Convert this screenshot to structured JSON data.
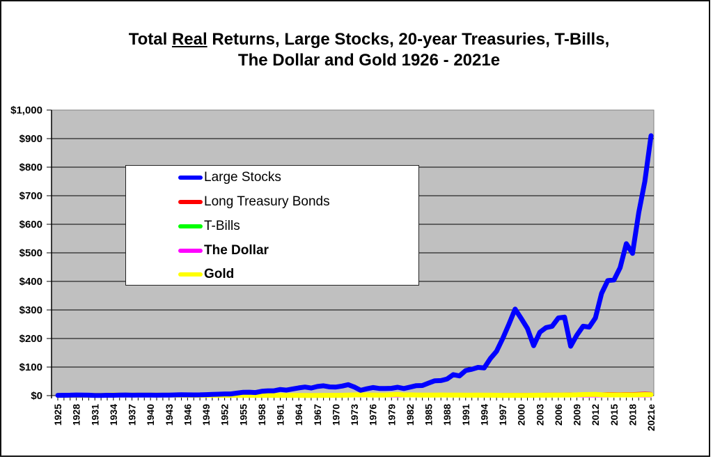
{
  "title": {
    "line1_prefix": "Total ",
    "line1_underlined": "Real",
    "line1_suffix": " Returns, Large Stocks, 20-year Treasuries, T-Bills,",
    "line2": "The Dollar and Gold 1926 - 2021e"
  },
  "legend": {
    "items": [
      {
        "label": "Large Stocks",
        "color": "#0000ff",
        "bold": false
      },
      {
        "label": "Long Treasury Bonds",
        "color": "#ff0000",
        "bold": false
      },
      {
        "label": "T-Bills",
        "color": "#00ff00",
        "bold": false
      },
      {
        "label": "The Dollar",
        "color": "#ff00ff",
        "bold": true
      },
      {
        "label": "Gold",
        "color": "#ffff00",
        "bold": true
      }
    ]
  },
  "colors": {
    "plot_background": "#c0c0c0",
    "gridline": "#000000",
    "frame": "#111111"
  },
  "chart_data": {
    "type": "line",
    "title": "Total Real Returns, Large Stocks, 20-year Treasuries, T-Bills, The Dollar and Gold 1926 - 2021e",
    "xlabel": "",
    "ylabel": "",
    "ylim": [
      0,
      1000
    ],
    "y_tick_labels": [
      "$0",
      "$100",
      "$200",
      "$300",
      "$400",
      "$500",
      "$600",
      "$700",
      "$800",
      "$900",
      "$1,000"
    ],
    "x_tick_labels": [
      "1925",
      "1928",
      "1931",
      "1934",
      "1937",
      "1940",
      "1943",
      "1946",
      "1949",
      "1952",
      "1955",
      "1958",
      "1961",
      "1964",
      "1967",
      "1970",
      "1973",
      "1976",
      "1979",
      "1982",
      "1985",
      "1988",
      "1991",
      "1994",
      "1997",
      "2000",
      "2003",
      "2006",
      "2009",
      "2012",
      "2015",
      "2018",
      "2021e"
    ],
    "grid": true,
    "legend_position": "upper-left inside plot",
    "x": [
      1925,
      1926,
      1927,
      1928,
      1929,
      1930,
      1931,
      1932,
      1933,
      1934,
      1935,
      1936,
      1937,
      1938,
      1939,
      1940,
      1941,
      1942,
      1943,
      1944,
      1945,
      1946,
      1947,
      1948,
      1949,
      1950,
      1951,
      1952,
      1953,
      1954,
      1955,
      1956,
      1957,
      1958,
      1959,
      1960,
      1961,
      1962,
      1963,
      1964,
      1965,
      1966,
      1967,
      1968,
      1969,
      1970,
      1971,
      1972,
      1973,
      1974,
      1975,
      1976,
      1977,
      1978,
      1979,
      1980,
      1981,
      1982,
      1983,
      1984,
      1985,
      1986,
      1987,
      1988,
      1989,
      1990,
      1991,
      1992,
      1993,
      1994,
      1995,
      1996,
      1997,
      1998,
      1999,
      2000,
      2001,
      2002,
      2003,
      2004,
      2005,
      2006,
      2007,
      2008,
      2009,
      2010,
      2011,
      2012,
      2013,
      2014,
      2015,
      2016,
      2017,
      2018,
      2019,
      2020,
      2021
    ],
    "series": [
      {
        "name": "Large Stocks",
        "color": "#0000ff",
        "values": [
          1,
          1.1,
          1.5,
          2.1,
          1.9,
          1.4,
          0.8,
          0.8,
          1.2,
          1.2,
          1.7,
          2.3,
          1.5,
          1.9,
          1.9,
          1.7,
          1.4,
          1.6,
          2.0,
          2.4,
          3.2,
          2.6,
          2.5,
          2.6,
          3.3,
          4.2,
          4.8,
          5.8,
          5.8,
          8.9,
          11.7,
          12.0,
          10.7,
          15.2,
          16.9,
          16.9,
          21.4,
          19.2,
          23.4,
          27.1,
          29.9,
          26.5,
          32.0,
          34.4,
          30.5,
          30.0,
          33.4,
          38.4,
          30.0,
          18.5,
          23.9,
          28.2,
          25.1,
          25.1,
          25.5,
          29.2,
          25.0,
          29.8,
          34.8,
          35.3,
          44.0,
          51.9,
          52.7,
          58.2,
          73.5,
          69.0,
          87.9,
          92.2,
          98.8,
          97.0,
          130.0,
          155.0,
          200.0,
          250.0,
          303.0,
          270.0,
          235.0,
          175.0,
          222.0,
          238.0,
          243.0,
          272.0,
          275.0,
          173.0,
          212.0,
          243.0,
          240.0,
          272.0,
          358.0,
          403.0,
          405.0,
          448.0,
          532.0,
          498.0,
          640.0,
          750.0,
          910.0
        ]
      },
      {
        "name": "Long Treasury Bonds",
        "color": "#ff0000",
        "values": [
          1,
          1.1,
          1.2,
          1.2,
          1.3,
          1.4,
          1.5,
          1.8,
          1.8,
          1.9,
          2.0,
          2.1,
          2.1,
          2.2,
          2.3,
          2.4,
          2.2,
          2.1,
          2.0,
          2.0,
          2.2,
          1.8,
          1.6,
          1.6,
          1.7,
          1.6,
          1.5,
          1.5,
          1.5,
          1.6,
          1.5,
          1.4,
          1.5,
          1.4,
          1.3,
          1.5,
          1.5,
          1.6,
          1.5,
          1.6,
          1.5,
          1.6,
          1.4,
          1.3,
          1.1,
          1.2,
          1.3,
          1.3,
          1.1,
          1.0,
          1.0,
          1.1,
          1.0,
          0.9,
          0.8,
          0.7,
          0.7,
          0.9,
          0.9,
          1.0,
          1.2,
          1.4,
          1.3,
          1.3,
          1.5,
          1.5,
          1.7,
          1.8,
          2.1,
          1.9,
          2.4,
          2.3,
          2.6,
          3.0,
          2.7,
          3.2,
          3.2,
          3.7,
          3.6,
          3.8,
          4.0,
          3.9,
          4.1,
          5.0,
          4.1,
          4.4,
          5.6,
          5.7,
          4.9,
          6.1,
          5.8,
          5.7,
          6.0,
          5.8,
          6.6,
          7.5,
          6.5
        ]
      },
      {
        "name": "T-Bills",
        "color": "#00ff00",
        "values": [
          1,
          1.0,
          1.1,
          1.1,
          1.2,
          1.3,
          1.4,
          1.6,
          1.6,
          1.6,
          1.6,
          1.6,
          1.6,
          1.6,
          1.6,
          1.6,
          1.5,
          1.4,
          1.3,
          1.3,
          1.3,
          1.1,
          1.0,
          1.0,
          1.0,
          1.0,
          0.9,
          0.9,
          0.9,
          0.9,
          0.9,
          0.9,
          0.9,
          0.9,
          0.9,
          0.9,
          0.9,
          0.9,
          0.9,
          0.9,
          1.0,
          1.0,
          1.0,
          1.0,
          1.0,
          1.0,
          1.0,
          1.0,
          1.0,
          0.9,
          0.9,
          0.9,
          0.9,
          0.9,
          0.9,
          0.9,
          0.9,
          1.0,
          1.0,
          1.1,
          1.1,
          1.2,
          1.2,
          1.2,
          1.3,
          1.3,
          1.3,
          1.3,
          1.3,
          1.3,
          1.4,
          1.4,
          1.4,
          1.5,
          1.5,
          1.5,
          1.5,
          1.5,
          1.5,
          1.5,
          1.5,
          1.5,
          1.5,
          1.6,
          1.5,
          1.5,
          1.5,
          1.5,
          1.4,
          1.4,
          1.4,
          1.4,
          1.4,
          1.4,
          1.4,
          1.4,
          1.3
        ]
      },
      {
        "name": "The Dollar",
        "color": "#ff00ff",
        "values": [
          1,
          1.0,
          1.0,
          1.0,
          1.0,
          1.1,
          1.2,
          1.3,
          1.3,
          1.3,
          1.2,
          1.2,
          1.2,
          1.2,
          1.2,
          1.2,
          1.1,
          1.0,
          1.0,
          0.9,
          0.9,
          0.8,
          0.7,
          0.7,
          0.7,
          0.7,
          0.6,
          0.6,
          0.6,
          0.6,
          0.6,
          0.6,
          0.6,
          0.6,
          0.6,
          0.6,
          0.6,
          0.6,
          0.5,
          0.5,
          0.5,
          0.5,
          0.5,
          0.5,
          0.5,
          0.4,
          0.4,
          0.4,
          0.4,
          0.3,
          0.3,
          0.3,
          0.3,
          0.3,
          0.2,
          0.2,
          0.2,
          0.2,
          0.2,
          0.2,
          0.2,
          0.2,
          0.2,
          0.2,
          0.2,
          0.2,
          0.2,
          0.1,
          0.1,
          0.1,
          0.1,
          0.1,
          0.1,
          0.1,
          0.1,
          0.1,
          0.1,
          0.1,
          0.1,
          0.1,
          0.1,
          0.1,
          0.1,
          0.1,
          0.1,
          0.1,
          0.1,
          0.1,
          0.1,
          0.1,
          0.1,
          0.1,
          0.1,
          0.1,
          0.1,
          0.1,
          0.1
        ]
      },
      {
        "name": "Gold",
        "color": "#ffff00",
        "values": [
          1,
          1.0,
          1.0,
          1.0,
          1.0,
          1.0,
          1.1,
          1.3,
          1.4,
          2.1,
          2.1,
          2.1,
          2.0,
          2.1,
          2.1,
          2.1,
          1.9,
          1.7,
          1.6,
          1.6,
          1.5,
          1.3,
          1.2,
          1.1,
          1.2,
          1.1,
          1.0,
          1.0,
          1.0,
          1.0,
          1.0,
          1.0,
          0.9,
          0.9,
          0.9,
          0.9,
          0.9,
          0.9,
          0.9,
          0.9,
          0.8,
          0.8,
          0.8,
          1.0,
          1.0,
          0.9,
          1.1,
          1.6,
          2.5,
          3.2,
          2.4,
          1.6,
          2.0,
          2.2,
          3.3,
          4.1,
          2.5,
          2.8,
          2.1,
          1.6,
          1.6,
          1.8,
          2.2,
          1.8,
          1.7,
          1.6,
          1.5,
          1.4,
          1.6,
          1.5,
          1.4,
          1.3,
          1.0,
          1.0,
          1.0,
          1.0,
          1.0,
          1.3,
          1.4,
          1.4,
          1.6,
          1.9,
          2.3,
          2.3,
          2.8,
          3.6,
          4.0,
          4.1,
          2.9,
          2.8,
          2.4,
          2.5,
          2.7,
          2.5,
          3.0,
          3.6,
          3.3
        ]
      }
    ]
  }
}
